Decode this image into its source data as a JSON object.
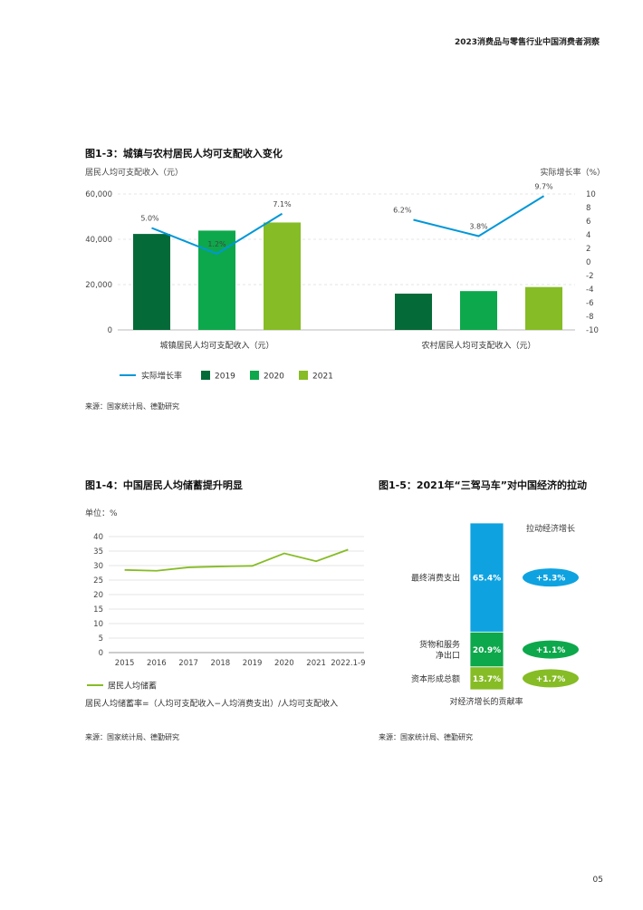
{
  "header": {
    "doc_title": "2023消费品与零售行业中国消费者洞察"
  },
  "page_number": "05",
  "fig13": {
    "title": "图1-3：城镇与农村居民人均可支配收入变化",
    "source": "来源：国家统计局、德勤研究",
    "chart_data": {
      "type": "bar",
      "title": "图1-3：城镇与农村居民人均可支配收入变化",
      "ylabel": "居民人均可支配收入（元）",
      "y2label": "实际增长率（%）",
      "ylim": [
        0,
        60000
      ],
      "y2lim": [
        -10,
        10
      ],
      "yticks": [
        "60,000",
        "40,000",
        "20,000",
        "0"
      ],
      "y2ticks": [
        "10",
        "8",
        "6",
        "4",
        "2",
        "0",
        "-2",
        "-4",
        "-6",
        "-8",
        "-10"
      ],
      "categories": [
        "城镇居民人均可支配收入（元）",
        "农村居民人均可支配收入（元）"
      ],
      "series": [
        {
          "name": "2019",
          "values": [
            42359,
            16021
          ],
          "color": "#046a38"
        },
        {
          "name": "2020",
          "values": [
            43834,
            17131
          ],
          "color": "#0da84b"
        },
        {
          "name": "2021",
          "values": [
            47412,
            18931
          ],
          "color": "#86bc25"
        }
      ],
      "line": {
        "name": "实际增长率",
        "color": "#0097d8",
        "groups": [
          {
            "values": [
              5.0,
              1.2,
              7.1
            ],
            "labels": [
              "5.0%",
              "1.2%",
              "7.1%"
            ]
          },
          {
            "values": [
              6.2,
              3.8,
              9.7
            ],
            "labels": [
              "6.2%",
              "3.8%",
              "9.7%"
            ]
          }
        ]
      },
      "legend": [
        "实际增长率",
        "2019",
        "2020",
        "2021"
      ],
      "legend_position": "bottom"
    }
  },
  "fig14": {
    "title": "图1-4：中国居民人均储蓄提升明显",
    "unit": "单位：%",
    "note": "居民人均储蓄率=（人均可支配收入−人均消费支出）/人均可支配收入",
    "source": "来源：国家统计局、德勤研究",
    "chart_data": {
      "type": "line",
      "x": [
        "2015",
        "2016",
        "2017",
        "2018",
        "2019",
        "2020",
        "2021",
        "2022.1-9"
      ],
      "series": [
        {
          "name": "居民人均储蓄",
          "values": [
            28.5,
            28.2,
            29.4,
            29.7,
            29.9,
            34.2,
            31.5,
            35.5
          ],
          "color": "#86bc25"
        }
      ],
      "ylim": [
        0,
        40
      ],
      "yticks": [
        "40",
        "35",
        "30",
        "25",
        "20",
        "15",
        "10",
        "5",
        "0"
      ],
      "grid": true,
      "legend_position": "bottom-left"
    }
  },
  "fig15": {
    "title": "图1-5：2021年“三驾马车”对中国经济的拉动",
    "right_header": "拉动经济增长",
    "xlabel": "对经济增长的贡献率",
    "source": "来源：国家统计局、德勤研究",
    "chart_data": {
      "type": "bar",
      "stacked": true,
      "categories": [
        "最终消费支出",
        "货物和服务\n净出口",
        "资本形成总额"
      ],
      "values": [
        65.4,
        20.9,
        13.7
      ],
      "value_labels": [
        "65.4%",
        "20.9%",
        "13.7%"
      ],
      "pull": [
        "+5.3%",
        "+1.1%",
        "+1.7%"
      ],
      "colors": [
        "#0ea2e0",
        "#0da84b",
        "#86bc25"
      ]
    }
  }
}
